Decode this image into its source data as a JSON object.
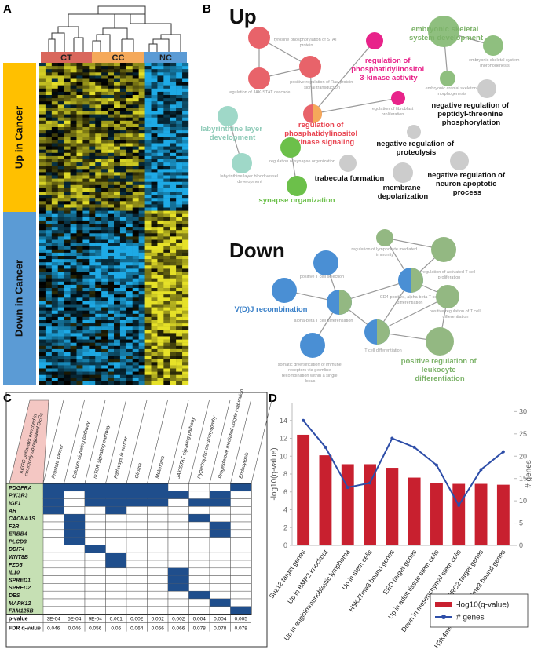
{
  "panels": {
    "a": "A",
    "b": "B",
    "c": "C",
    "d": "D"
  },
  "heatmap": {
    "groups": [
      "CT",
      "CC",
      "NC"
    ],
    "group_colors": [
      "#d9675c",
      "#f5a95a",
      "#5b9bd5"
    ],
    "sides": [
      "Up in Cancer",
      "Down in Cancer"
    ],
    "side_colors": [
      "#ffc000",
      "#5b9bd5"
    ]
  },
  "network": {
    "up_title": "Up",
    "down_title": "Down",
    "nodes": [
      {
        "label": "tyrosine phosphorylation of STAT protein",
        "color": "#e8636a"
      },
      {
        "label": "positive regulation of Ras protein signal transduction",
        "color": "#e8636a"
      },
      {
        "label": "regulation of JAK-STAT cascade",
        "color": "#e8636a"
      },
      {
        "label": "regulation of phosphatidylinositol 3-kinase activity",
        "color": "#e8238a"
      },
      {
        "label": "regulation of fibroblast proliferation",
        "color": "#e8238a"
      },
      {
        "label": "regulation of phosphatidylinositol 3-kinase signaling",
        "color": "#e8636a"
      },
      {
        "label": "embryonic skeletal system development",
        "color": "#8fbf7f"
      },
      {
        "label": "embryonic skeletal system morphogenesis",
        "color": "#8fbf7f"
      },
      {
        "label": "embryonic cranial skeleton morphogenesis",
        "color": "#8fbf7f"
      },
      {
        "label": "negative regulation of peptidyl-threonine phosphorylation",
        "color": "#cccccc"
      },
      {
        "label": "labyrinthine layer development",
        "color": "#9fd8c8"
      },
      {
        "label": "labyrinthine layer blood vessel development",
        "color": "#9fd8c8"
      },
      {
        "label": "regulation of synapse organization",
        "color": "#6cc04a"
      },
      {
        "label": "synapse organization",
        "color": "#6cc04a"
      },
      {
        "label": "trabecula formation",
        "color": "#cccccc"
      },
      {
        "label": "negative regulation of proteolysis",
        "color": "#cccccc"
      },
      {
        "label": "membrane depolarization",
        "color": "#cccccc"
      },
      {
        "label": "negative regulation of neuron apoptotic process",
        "color": "#cccccc"
      },
      {
        "label": "positive T cell selection",
        "color": "#4a8fd4"
      },
      {
        "label": "V(D)J recombination",
        "color": "#4a8fd4"
      },
      {
        "label": "alpha-beta T cell differentiation",
        "color": "#4a8fd4"
      },
      {
        "label": "regulation of lymphocyte mediated immunity",
        "color": "#93b882"
      },
      {
        "label": "CD4-positive, alpha-beta T cell differentiation",
        "color": "#4a8fd4"
      },
      {
        "label": "regulation of activated T cell proliferation",
        "color": "#93b882"
      },
      {
        "label": "positive regulation of T cell differentiation",
        "color": "#93b882"
      },
      {
        "label": "somatic diversification of immune receptors via germline recombination within a single locus",
        "color": "#4a8fd4"
      },
      {
        "label": "T cell differentiation",
        "color": "#4a8fd4"
      },
      {
        "label": "positive regulation of leukocyte differentiation",
        "color": "#93b882"
      }
    ]
  },
  "table": {
    "header": "KEGG pathways enriched in commonly up-regulated DEGs",
    "columns": [
      "Prostate cancer",
      "Calcium signaling pathway",
      "mTOR signaling pathway",
      "Pathways in cancer",
      "Glioma",
      "Melanoma",
      "JAK/STAT signaling pathway",
      "Hypertrophic cardiomyopathy",
      "Progesterone mediated oocyte maturation",
      "Endocytosis"
    ],
    "rows": [
      {
        "gene": "PDGFRA",
        "hits": [
          0,
          1,
          2,
          3,
          4,
          5,
          9
        ]
      },
      {
        "gene": "PIK3R3",
        "hits": [
          0,
          2,
          3,
          4,
          5,
          6,
          8
        ]
      },
      {
        "gene": "IGF1",
        "hits": [
          0,
          2,
          3,
          4,
          5,
          7,
          8
        ]
      },
      {
        "gene": "AR",
        "hits": [
          0,
          3
        ]
      },
      {
        "gene": "CACNA1S",
        "hits": [
          1,
          7
        ]
      },
      {
        "gene": "F2R",
        "hits": [
          1,
          8
        ]
      },
      {
        "gene": "ERBB4",
        "hits": [
          1,
          8
        ]
      },
      {
        "gene": "PLCD3",
        "hits": [
          1
        ]
      },
      {
        "gene": "DDIT4",
        "hits": [
          2
        ]
      },
      {
        "gene": "WNT8B",
        "hits": [
          3
        ]
      },
      {
        "gene": "FZD5",
        "hits": [
          3
        ]
      },
      {
        "gene": "IL10",
        "hits": [
          6
        ]
      },
      {
        "gene": "SPRED1",
        "hits": [
          6
        ]
      },
      {
        "gene": "SPRED2",
        "hits": [
          6
        ]
      },
      {
        "gene": "DES",
        "hits": [
          7
        ]
      },
      {
        "gene": "MAPK12",
        "hits": [
          8
        ]
      },
      {
        "gene": "FAM125B",
        "hits": [
          9
        ]
      }
    ],
    "pvalue_label": "p-value",
    "pvalues": [
      "3E-04",
      "5E-04",
      "9E-04",
      "0.001",
      "0.002",
      "0.002",
      "0.002",
      "0.004",
      "0.004",
      "0.005"
    ],
    "fdr_label": "FDR q-value",
    "fdr": [
      "0.046",
      "0.046",
      "0.056",
      "0.06",
      "0.064",
      "0.066",
      "0.066",
      "0.078",
      "0.078",
      "0.078"
    ]
  },
  "chart_data": {
    "type": "bar_line",
    "categories": [
      "Suz12 target genes",
      "Up in BMP2 knockout",
      "Up in angioimmunoblastic lymphoma",
      "Up in stem cells",
      "H3K27me3 bound genes",
      "EED target genes",
      "Up in adult tissue stem cells",
      "Down in mesenchymal stem cells",
      "PRC2 target genes",
      "H3K4me2 and H3K27me3 bound genes"
    ],
    "ylabel": "-log10(q-value)",
    "y2label": "# genes",
    "series": [
      {
        "name": "-log10(q-value)",
        "color": "#c8202f",
        "values": [
          12.4,
          10.1,
          9.1,
          9.1,
          8.7,
          7.6,
          7.0,
          6.9,
          6.9,
          6.8
        ]
      },
      {
        "name": "# genes",
        "color": "#2e4ea8",
        "axis": "y2",
        "values": [
          28,
          22,
          13,
          14,
          24,
          22,
          18,
          9,
          17,
          21
        ]
      }
    ],
    "ylim": [
      0,
      16
    ],
    "yticks": [
      0,
      2,
      4,
      6,
      8,
      10,
      12,
      14
    ],
    "y2lim": [
      0,
      32
    ],
    "y2ticks": [
      0,
      5,
      10,
      15,
      20,
      25,
      30
    ],
    "grid": false,
    "legend": "lower right"
  }
}
